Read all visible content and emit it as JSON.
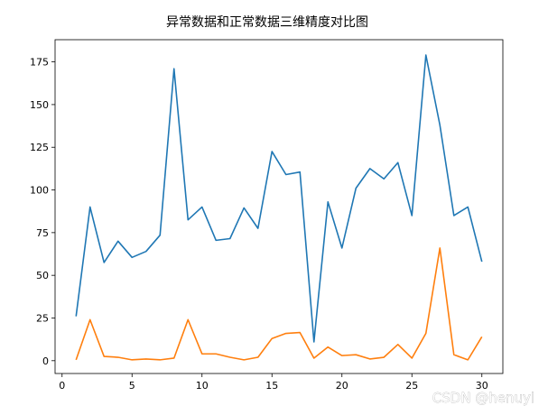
{
  "title": "异常数据和正常数据三维精度对比图",
  "watermark": "CSDN @henuyl",
  "colors": {
    "background": "#ffffff",
    "axes": "#000000",
    "series_1": "#1f77b4",
    "series_2": "#ff7f0e"
  },
  "chart_data": {
    "type": "line",
    "title": "异常数据和正常数据三维精度对比图",
    "xlabel": "",
    "ylabel": "",
    "xlim": [
      -0.5,
      31.5
    ],
    "ylim": [
      -7.5,
      188
    ],
    "xticks": [
      0,
      5,
      10,
      15,
      20,
      25,
      30
    ],
    "xtick_labels": [
      "0",
      "5",
      "10",
      "15",
      "20",
      "25",
      "30"
    ],
    "yticks": [
      0,
      25,
      50,
      75,
      100,
      125,
      150,
      175
    ],
    "ytick_labels": [
      "0",
      "25",
      "50",
      "75",
      "100",
      "125",
      "150",
      "175"
    ],
    "grid": false,
    "legend": "none",
    "x": [
      1,
      2,
      3,
      4,
      5,
      6,
      7,
      8,
      9,
      10,
      11,
      12,
      13,
      14,
      15,
      16,
      17,
      18,
      19,
      20,
      21,
      22,
      23,
      24,
      25,
      26,
      27,
      28,
      29,
      30
    ],
    "series": [
      {
        "color": "#1f77b4",
        "values": [
          26,
          90,
          57.5,
          70,
          60.5,
          64,
          73.5,
          171,
          82.5,
          90,
          70.5,
          71.5,
          89.5,
          77.5,
          122.5,
          109,
          110.5,
          11,
          93,
          66,
          101,
          112.5,
          106.5,
          116,
          85,
          179,
          138,
          85,
          90,
          58
        ]
      },
      {
        "color": "#ff7f0e",
        "values": [
          0.5,
          24,
          2.5,
          2,
          0.5,
          1,
          0.5,
          1.5,
          24,
          4,
          4,
          2,
          0.5,
          2,
          13,
          16,
          16.5,
          1.5,
          8,
          3,
          3.5,
          1,
          2,
          9.5,
          1.5,
          16,
          66,
          3.5,
          0.5,
          14
        ]
      }
    ]
  }
}
